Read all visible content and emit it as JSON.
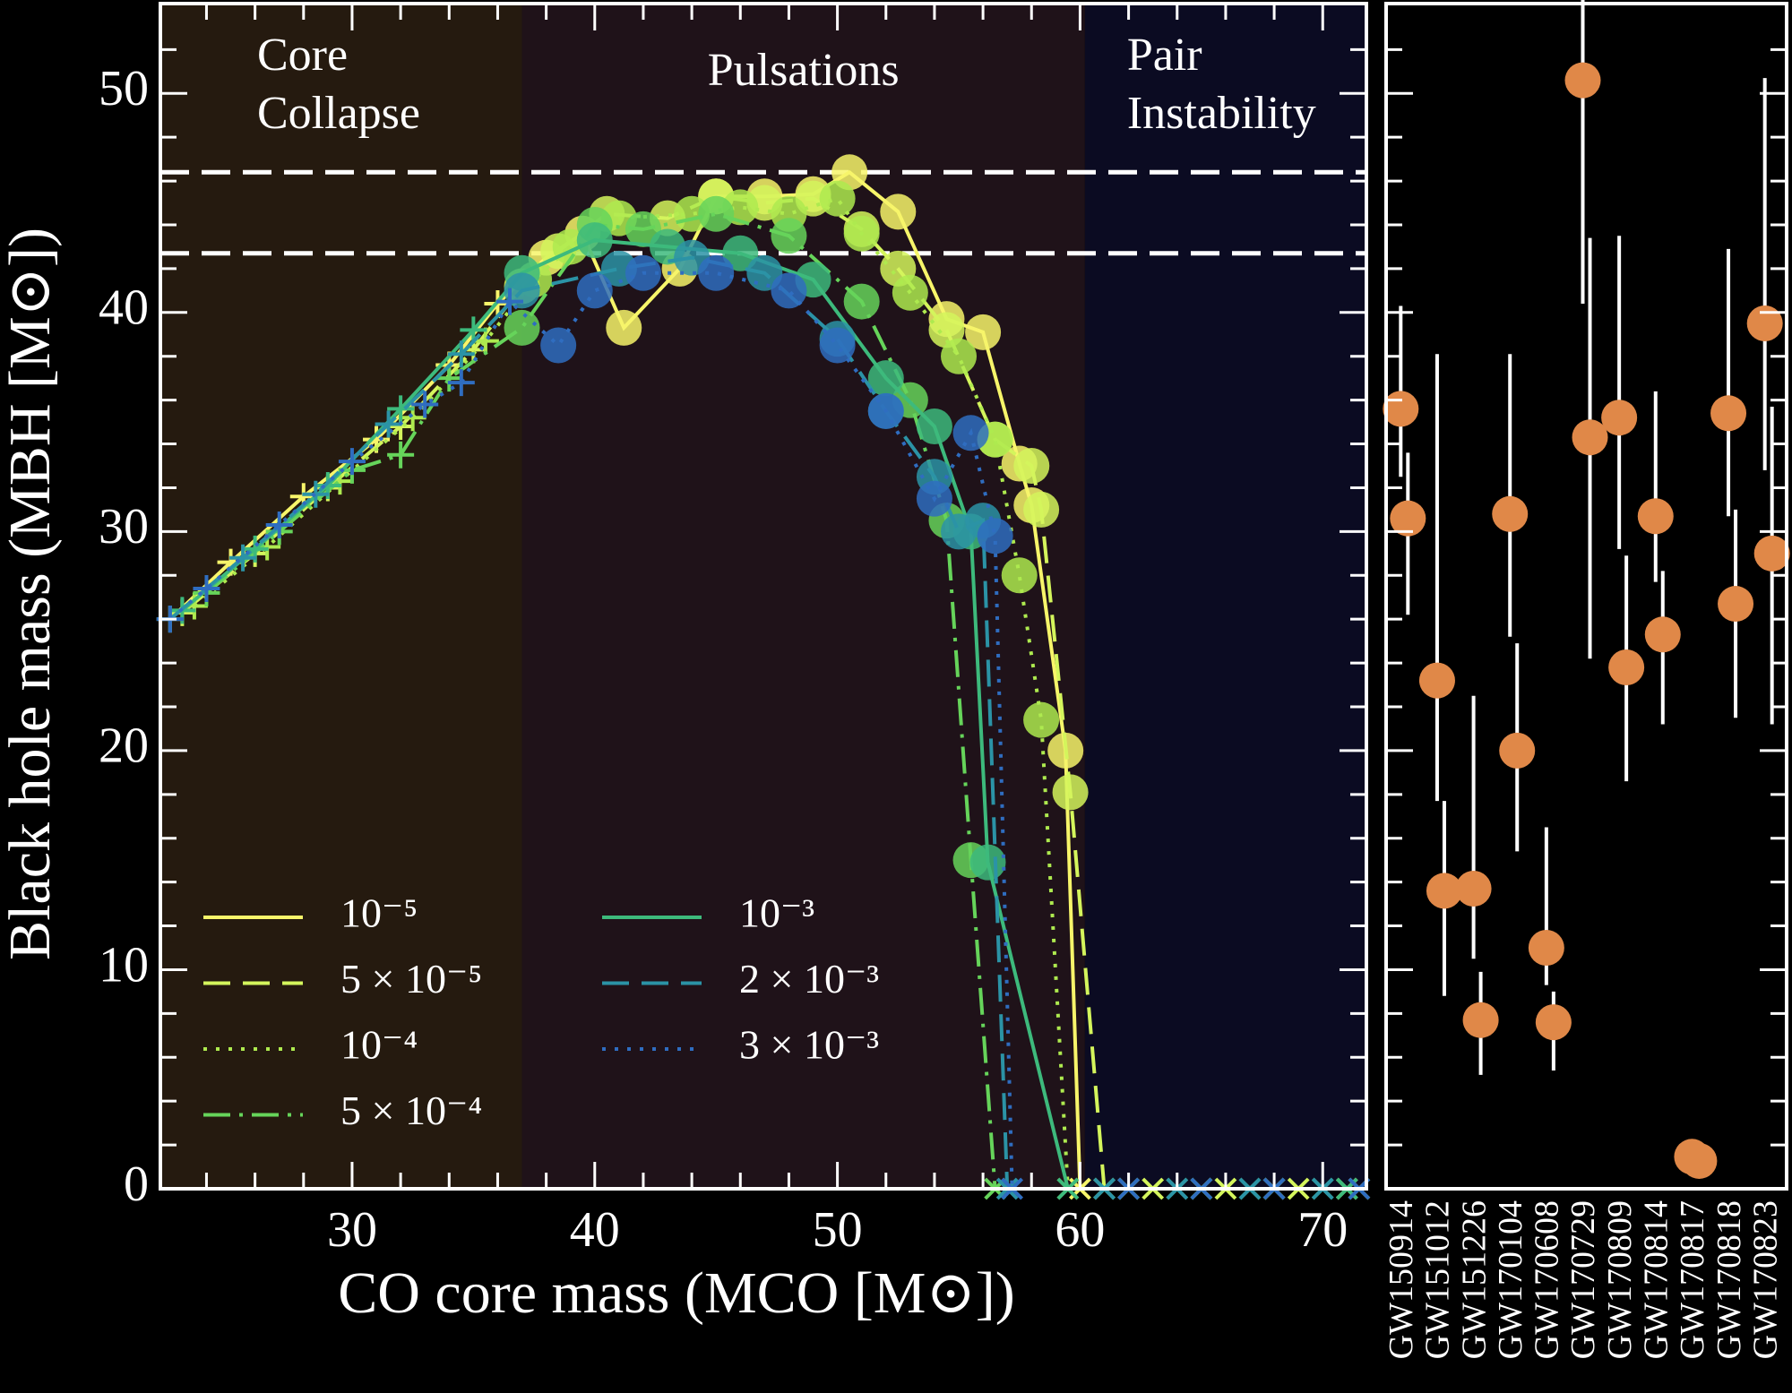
{
  "chart_data": [
    {
      "type": "line",
      "xlabel": "CO core mass (MCO [M⊙])",
      "ylabel": "Black hole mass (MBH [M⊙])",
      "xlim": [
        22.1,
        71.8
      ],
      "ylim": [
        0,
        54.1
      ],
      "xticks": [
        30,
        40,
        50,
        60,
        70
      ],
      "xticks_minor": [
        24,
        26,
        28,
        32,
        34,
        36,
        38,
        42,
        44,
        46,
        48,
        52,
        54,
        56,
        58,
        62,
        64,
        66,
        68
      ],
      "yticks": [
        0,
        10,
        20,
        30,
        40,
        50
      ],
      "yticks_minor": [
        2,
        4,
        6,
        8,
        12,
        14,
        16,
        18,
        22,
        24,
        26,
        28,
        32,
        34,
        36,
        38,
        42,
        44,
        46,
        48,
        52
      ],
      "tick_direction": "in",
      "regions": [
        {
          "label": [
            "Core",
            "Collapse"
          ],
          "xlim": [
            22.1,
            37
          ],
          "color": "#251a0f"
        },
        {
          "label": [
            "Pulsations"
          ],
          "xlim": [
            37,
            60.2
          ],
          "color": "#1f1219"
        },
        {
          "label": [
            "Pair",
            "Instability"
          ],
          "xlim": [
            60.2,
            71.8
          ],
          "color": "#0b0b22"
        }
      ],
      "hlines": [
        46.4,
        42.7
      ],
      "hline_color": "#ffffff",
      "legend": {
        "loc": "lower left",
        "ncol": 2
      },
      "series": [
        {
          "name": "10⁻⁵",
          "color": "#f7f56a",
          "linestyle": "solid",
          "x": [
            22.5,
            25,
            28,
            31,
            34,
            36,
            38,
            39.5,
            41.2,
            43.5,
            45,
            47,
            49,
            50.5,
            52.5,
            54.5,
            56,
            57.5,
            58,
            59.4,
            60,
            62,
            65,
            68,
            71
          ],
          "values": [
            26,
            28.6,
            31.6,
            34.2,
            37.6,
            40.4,
            42.5,
            43.6,
            39.3,
            42,
            45.3,
            45.3,
            45.4,
            46.4,
            44.6,
            39.7,
            39.1,
            33.1,
            31.2,
            20,
            0,
            0,
            0,
            0,
            0
          ]
        },
        {
          "name": "5 × 10⁻⁵",
          "color": "#d4f55c",
          "linestyle": "dashed",
          "x": [
            23,
            26,
            29,
            32,
            35,
            37,
            38.5,
            40.5,
            43,
            45,
            47,
            49,
            51,
            52.5,
            54.5,
            56.5,
            58,
            58.4,
            59.6,
            61,
            63,
            66,
            69,
            71.5
          ],
          "values": [
            26.3,
            29,
            32,
            34.8,
            38.3,
            41.2,
            42.8,
            44.5,
            44.3,
            45.3,
            45,
            45.2,
            43.8,
            42,
            39.2,
            34.2,
            33,
            31,
            18.1,
            0,
            0,
            0,
            0,
            0
          ]
        },
        {
          "name": "10⁻⁴",
          "color": "#aeea4f",
          "linestyle": "dotted",
          "x": [
            23.5,
            26.5,
            29.5,
            32.5,
            35.5,
            37.5,
            39,
            41,
            44,
            46,
            48,
            50,
            51,
            53,
            55,
            56.5,
            57.5,
            58.4,
            59.5,
            62,
            65,
            68,
            71
          ],
          "values": [
            26.6,
            29.3,
            32.3,
            35.2,
            38.7,
            41.5,
            43,
            44.3,
            44.5,
            44.8,
            44.5,
            45.2,
            43.6,
            40.9,
            38,
            34.2,
            28,
            21.4,
            0,
            0,
            0,
            0,
            0
          ]
        },
        {
          "name": "5 × 10⁻⁴",
          "color": "#66d45a",
          "linestyle": "dashdot",
          "x": [
            24,
            27,
            30,
            32,
            34,
            37,
            40,
            42,
            45,
            48,
            51,
            53,
            54.5,
            55.5,
            56.5,
            61,
            64,
            67,
            70
          ],
          "values": [
            27.2,
            30,
            32.8,
            33.5,
            37,
            39.3,
            44,
            43.8,
            44.5,
            43.5,
            40.5,
            36,
            30.5,
            15,
            0,
            0,
            0,
            0,
            0
          ]
        },
        {
          "name": "10⁻³",
          "color": "#3dba7c",
          "linestyle": "solid",
          "x": [
            23,
            26,
            29,
            32,
            35,
            37,
            40,
            43,
            46,
            49,
            52,
            54,
            55.5,
            56.2,
            59.5,
            62,
            65,
            68,
            71
          ],
          "values": [
            26.4,
            29.2,
            32.1,
            35.6,
            39.2,
            41.8,
            43.3,
            43,
            42.7,
            41.5,
            37,
            34.8,
            30,
            14.9,
            0,
            0,
            0,
            0,
            0
          ]
        },
        {
          "name": "2 × 10⁻³",
          "color": "#2b93a6",
          "linestyle": "dashed",
          "x": [
            22.5,
            25.5,
            28.5,
            31.5,
            34.5,
            37,
            41,
            44,
            47,
            50,
            52,
            54,
            55,
            56,
            57,
            61,
            64,
            67,
            70
          ],
          "values": [
            26,
            28.8,
            31.7,
            34.9,
            38.1,
            41,
            42,
            42.5,
            41.8,
            38.8,
            35.5,
            32.5,
            30,
            30.5,
            0,
            0,
            0,
            0,
            0
          ]
        },
        {
          "name": "3 × 10⁻³",
          "color": "#2f6dc0",
          "linestyle": "dotted",
          "x": [
            22.5,
            24,
            27,
            30,
            33,
            34.5,
            36.5,
            38.5,
            40,
            42,
            45,
            48,
            50,
            52,
            54,
            55.5,
            56.5,
            57.2,
            62,
            65,
            68,
            71.5
          ],
          "values": [
            26,
            27.4,
            30.3,
            33.2,
            35.8,
            36.8,
            40.5,
            38.5,
            41,
            41.8,
            41.8,
            41,
            38.5,
            35.5,
            31.5,
            34.5,
            29.8,
            0,
            0,
            0,
            0,
            0
          ]
        }
      ]
    },
    {
      "type": "scatter",
      "categories": [
        "GW150914",
        "GW151012",
        "GW151226",
        "GW170104",
        "GW170608",
        "GW170729",
        "GW170809",
        "GW170814",
        "GW170817",
        "GW170818",
        "GW170823"
      ],
      "ylim": [
        0,
        54.1
      ],
      "ytick_marks_major": [
        0,
        10,
        20,
        30,
        40,
        50
      ],
      "ytick_marks_minor": [
        2,
        4,
        6,
        8,
        12,
        14,
        16,
        18,
        22,
        24,
        26,
        28,
        32,
        34,
        36,
        38,
        42,
        44,
        46,
        48,
        52
      ],
      "errorbar_color": "#ffffff",
      "series": [
        {
          "color": "#e08848",
          "values": [
            35.6,
            23.2,
            13.7,
            30.8,
            11.0,
            50.6,
            35.2,
            30.7,
            1.46,
            35.4,
            39.5
          ],
          "error_minus": [
            3.1,
            5.5,
            3.2,
            5.6,
            1.7,
            10.2,
            6.0,
            3.0,
            0.1,
            4.7,
            6.7
          ],
          "error_plus": [
            4.7,
            14.9,
            8.8,
            7.3,
            5.5,
            16.6,
            8.3,
            5.7,
            0.12,
            7.5,
            11.2
          ]
        },
        {
          "color": "#e08848",
          "values": [
            30.6,
            13.6,
            7.7,
            20.0,
            7.6,
            34.3,
            23.8,
            25.3,
            1.27,
            26.7,
            29.0
          ],
          "error_minus": [
            4.4,
            4.8,
            2.5,
            4.6,
            2.2,
            10.1,
            5.2,
            4.1,
            0.09,
            5.2,
            7.8
          ],
          "error_plus": [
            3.0,
            4.1,
            2.2,
            4.9,
            1.4,
            9.1,
            5.1,
            2.9,
            0.09,
            4.3,
            6.7
          ]
        }
      ]
    }
  ]
}
